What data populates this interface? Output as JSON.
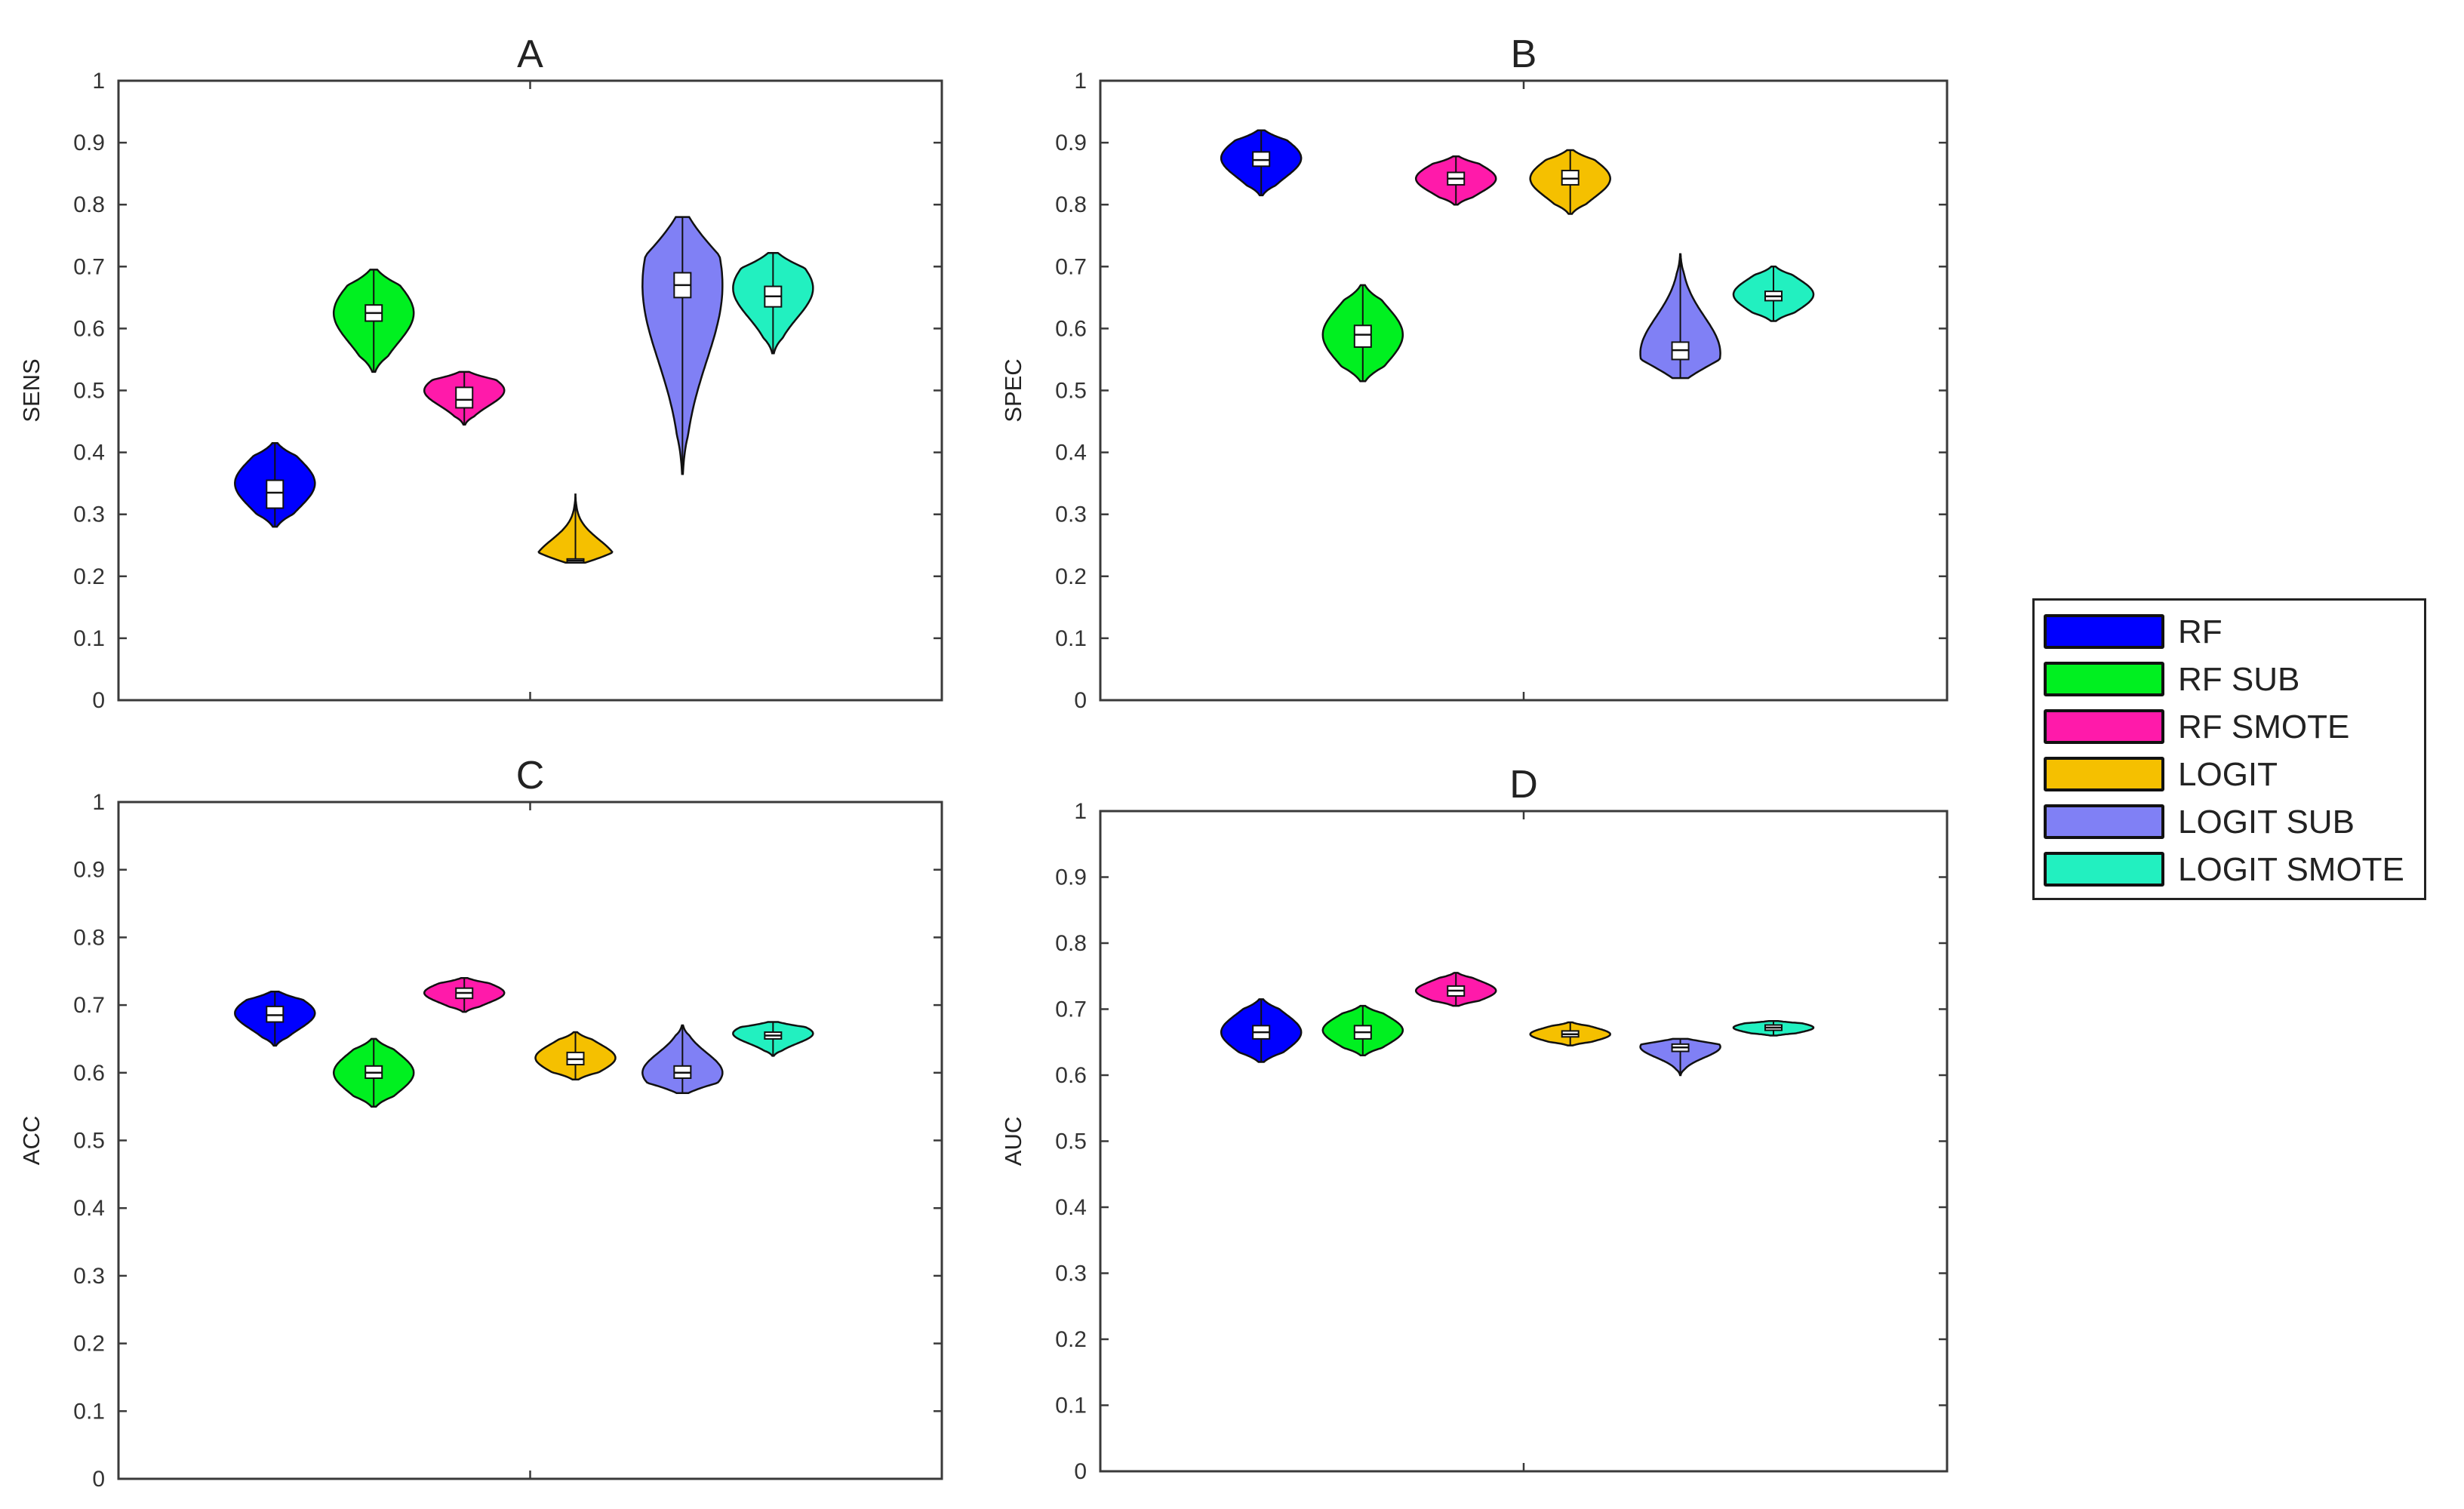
{
  "colors": {
    "RF": "#0000ff",
    "RF SUB": "#00f020",
    "RF SMOTE": "#ff1aaa",
    "LOGIT": "#f5c000",
    "LOGIT SUB": "#8080f5",
    "LOGIT SMOTE": "#22f0c0"
  },
  "legend": {
    "entries": [
      "RF",
      "RF SUB",
      "RF SMOTE",
      "LOGIT",
      "LOGIT SUB",
      "LOGIT SMOTE"
    ]
  },
  "chart_data": [
    {
      "type": "violin",
      "title": "A",
      "ylabel": "SENS",
      "ylim": [
        0,
        1
      ],
      "yticks": [
        "0",
        "0.1",
        "0.2",
        "0.3",
        "0.4",
        "0.5",
        "0.6",
        "0.7",
        "0.8",
        "0.9",
        "1"
      ],
      "grid": false,
      "series": [
        {
          "name": "RF",
          "min": 0.28,
          "max": 0.415,
          "q1": 0.31,
          "median": 0.335,
          "q3": 0.355,
          "mode": 0.35
        },
        {
          "name": "RF SUB",
          "min": 0.53,
          "max": 0.695,
          "q1": 0.612,
          "median": 0.625,
          "q3": 0.638,
          "mode": 0.625
        },
        {
          "name": "RF SMOTE",
          "min": 0.445,
          "max": 0.53,
          "q1": 0.472,
          "median": 0.485,
          "q3": 0.505,
          "mode": 0.5
        },
        {
          "name": "LOGIT",
          "min": 0.222,
          "max": 0.332,
          "q1": 0.225,
          "median": 0.225,
          "q3": 0.228,
          "mode": 0.226
        },
        {
          "name": "LOGIT SUB",
          "min": 0.365,
          "max": 0.78,
          "q1": 0.65,
          "median": 0.67,
          "q3": 0.69,
          "mode": 0.67
        },
        {
          "name": "LOGIT SMOTE",
          "min": 0.56,
          "max": 0.722,
          "q1": 0.635,
          "median": 0.652,
          "q3": 0.668,
          "mode": 0.665
        }
      ]
    },
    {
      "type": "violin",
      "title": "B",
      "ylabel": "SPEC",
      "ylim": [
        0,
        1
      ],
      "yticks": [
        "0",
        "0.1",
        "0.2",
        "0.3",
        "0.4",
        "0.5",
        "0.6",
        "0.7",
        "0.8",
        "0.9",
        "1"
      ],
      "grid": false,
      "series": [
        {
          "name": "RF",
          "min": 0.815,
          "max": 0.92,
          "q1": 0.862,
          "median": 0.872,
          "q3": 0.885,
          "mode": 0.875
        },
        {
          "name": "RF SUB",
          "min": 0.515,
          "max": 0.67,
          "q1": 0.57,
          "median": 0.59,
          "q3": 0.605,
          "mode": 0.59
        },
        {
          "name": "RF SMOTE",
          "min": 0.8,
          "max": 0.878,
          "q1": 0.832,
          "median": 0.842,
          "q3": 0.852,
          "mode": 0.842
        },
        {
          "name": "LOGIT",
          "min": 0.785,
          "max": 0.888,
          "q1": 0.832,
          "median": 0.842,
          "q3": 0.855,
          "mode": 0.842
        },
        {
          "name": "LOGIT SUB",
          "min": 0.52,
          "max": 0.72,
          "q1": 0.55,
          "median": 0.565,
          "q3": 0.578,
          "mode": 0.56
        },
        {
          "name": "LOGIT SMOTE",
          "min": 0.612,
          "max": 0.7,
          "q1": 0.645,
          "median": 0.652,
          "q3": 0.66,
          "mode": 0.655
        }
      ]
    },
    {
      "type": "violin",
      "title": "C",
      "ylabel": "ACC",
      "ylim": [
        0,
        1
      ],
      "yticks": [
        "0",
        "0.1",
        "0.2",
        "0.3",
        "0.4",
        "0.5",
        "0.6",
        "0.7",
        "0.8",
        "0.9",
        "1"
      ],
      "grid": false,
      "series": [
        {
          "name": "RF",
          "min": 0.64,
          "max": 0.72,
          "q1": 0.675,
          "median": 0.685,
          "q3": 0.698,
          "mode": 0.688
        },
        {
          "name": "RF SUB",
          "min": 0.55,
          "max": 0.65,
          "q1": 0.592,
          "median": 0.6,
          "q3": 0.61,
          "mode": 0.6
        },
        {
          "name": "RF SMOTE",
          "min": 0.69,
          "max": 0.74,
          "q1": 0.71,
          "median": 0.718,
          "q3": 0.725,
          "mode": 0.718
        },
        {
          "name": "LOGIT",
          "min": 0.59,
          "max": 0.66,
          "q1": 0.612,
          "median": 0.62,
          "q3": 0.63,
          "mode": 0.622
        },
        {
          "name": "LOGIT SUB",
          "min": 0.57,
          "max": 0.67,
          "q1": 0.592,
          "median": 0.6,
          "q3": 0.61,
          "mode": 0.6
        },
        {
          "name": "LOGIT SMOTE",
          "min": 0.625,
          "max": 0.675,
          "q1": 0.65,
          "median": 0.655,
          "q3": 0.66,
          "mode": 0.658
        }
      ]
    },
    {
      "type": "violin",
      "title": "D",
      "ylabel": "AUC",
      "ylim": [
        0,
        1
      ],
      "yticks": [
        "0",
        "0.1",
        "0.2",
        "0.3",
        "0.4",
        "0.5",
        "0.6",
        "0.7",
        "0.8",
        "0.9",
        "1"
      ],
      "grid": false,
      "series": [
        {
          "name": "RF",
          "min": 0.62,
          "max": 0.715,
          "q1": 0.655,
          "median": 0.665,
          "q3": 0.675,
          "mode": 0.665
        },
        {
          "name": "RF SUB",
          "min": 0.63,
          "max": 0.705,
          "q1": 0.655,
          "median": 0.665,
          "q3": 0.675,
          "mode": 0.668
        },
        {
          "name": "RF SMOTE",
          "min": 0.705,
          "max": 0.755,
          "q1": 0.72,
          "median": 0.728,
          "q3": 0.735,
          "mode": 0.728
        },
        {
          "name": "LOGIT",
          "min": 0.645,
          "max": 0.68,
          "q1": 0.658,
          "median": 0.662,
          "q3": 0.667,
          "mode": 0.662
        },
        {
          "name": "LOGIT SUB",
          "min": 0.6,
          "max": 0.655,
          "q1": 0.636,
          "median": 0.642,
          "q3": 0.647,
          "mode": 0.643
        },
        {
          "name": "LOGIT SMOTE",
          "min": 0.66,
          "max": 0.682,
          "q1": 0.668,
          "median": 0.672,
          "q3": 0.676,
          "mode": 0.672
        }
      ]
    }
  ]
}
